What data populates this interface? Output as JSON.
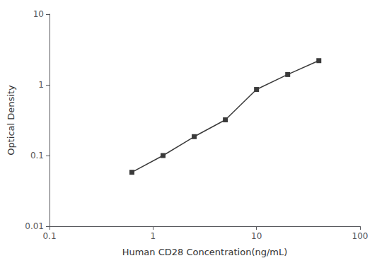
{
  "chart_data": {
    "type": "line",
    "x": [
      0.625,
      1.25,
      2.5,
      5.0,
      10.0,
      20.0,
      40.0
    ],
    "values": [
      0.058,
      0.1,
      0.185,
      0.32,
      0.86,
      1.4,
      2.2
    ],
    "color": "#3a3a3a",
    "marker": "square",
    "xlabel": "Human CD28 Concentration(ng/mL)",
    "ylabel": "Optical Density",
    "xlim": [
      0.1,
      100
    ],
    "ylim": [
      0.01,
      10
    ],
    "xticks": [
      0.1,
      1,
      10,
      100
    ],
    "yticks": [
      0.01,
      0.1,
      1,
      10
    ],
    "log": true,
    "grid": false
  }
}
